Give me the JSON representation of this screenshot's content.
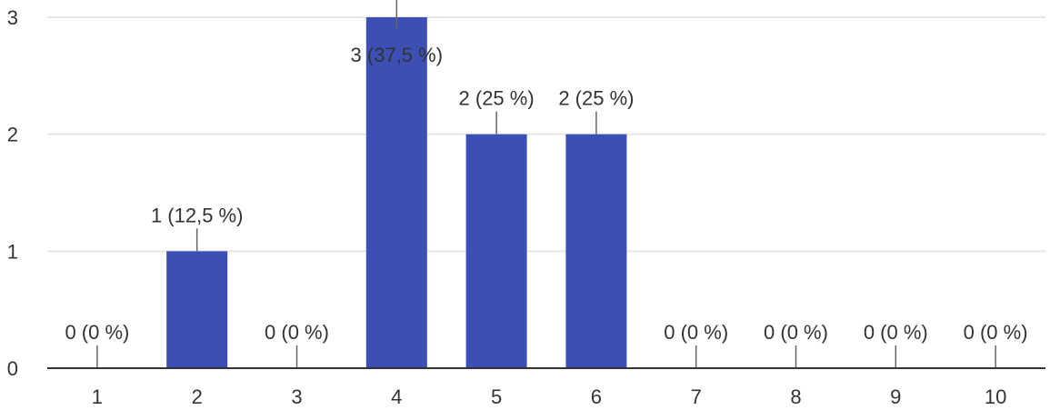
{
  "chart_data": {
    "type": "bar",
    "categories": [
      "1",
      "2",
      "3",
      "4",
      "5",
      "6",
      "7",
      "8",
      "9",
      "10"
    ],
    "values": [
      0,
      1,
      0,
      3,
      2,
      2,
      0,
      0,
      0,
      0
    ],
    "data_labels": [
      "0 (0 %)",
      "1 (12,5 %)",
      "0 (0 %)",
      "3 (37,5 %)",
      "2 (25 %)",
      "2 (25 %)",
      "0 (0 %)",
      "0 (0 %)",
      "0 (0 %)",
      "0 (0 %)"
    ],
    "y_ticks": [
      "0",
      "1",
      "2",
      "3"
    ],
    "ylim": [
      0,
      3
    ],
    "grid": true,
    "bar_color": "#3c4fb5",
    "grid_color": "#e6e6e6",
    "axis_color": "#333333"
  }
}
